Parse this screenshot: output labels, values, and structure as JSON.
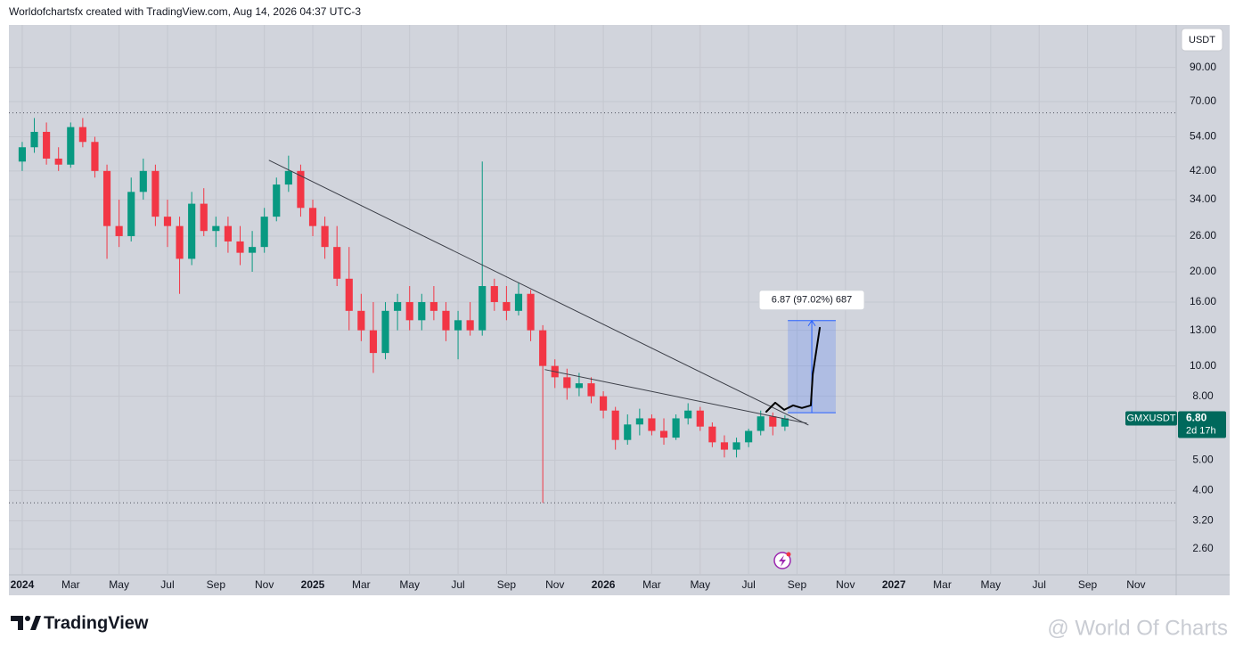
{
  "header": {
    "text": "Worldofchartsfx created with TradingView.com, Aug 14, 2026 04:37 UTC-3"
  },
  "chart_data": {
    "type": "candlestick",
    "currency": "USDT",
    "symbol": "GMXUSDT",
    "last_price": {
      "value": 6.8,
      "label": "6.80"
    },
    "countdown": "2d 17h",
    "up_color": "#089981",
    "down_color": "#f23645",
    "x": [
      0,
      0.5,
      1,
      1.5,
      2,
      2.5,
      3,
      3.5,
      4,
      4.5,
      5,
      5.5,
      6,
      6.5,
      7,
      7.5,
      8,
      8.5,
      9,
      9.5,
      10,
      10.5,
      11,
      11.5,
      12,
      12.5,
      13,
      13.5,
      14,
      14.5,
      15,
      15.5,
      16,
      16.5,
      17,
      17.5,
      18,
      18.5,
      19,
      19.5,
      20,
      20.5,
      21,
      21.5,
      22,
      22.5,
      23,
      23.5,
      24,
      24.5,
      25,
      25.5,
      26,
      26.5,
      27,
      27.5,
      28,
      28.5,
      29,
      29.5,
      30,
      30.5,
      31,
      31.5
    ],
    "open": [
      45,
      50,
      56,
      46,
      44,
      58,
      52,
      42,
      28,
      26,
      36,
      42,
      30,
      28,
      22,
      33,
      27,
      28,
      25,
      23,
      24,
      30,
      38,
      42,
      32,
      28,
      24,
      19,
      15,
      13,
      11,
      15,
      16,
      14,
      16,
      15,
      13,
      14,
      13,
      18,
      16,
      15,
      17,
      13,
      10,
      9.2,
      8.5,
      8.8,
      8,
      7.2,
      5.8,
      6.5,
      6.8,
      6.2,
      5.9,
      6.8,
      7.2,
      6.4,
      5.7,
      5.4,
      5.7,
      6.2,
      6.9,
      6.4
    ],
    "high": [
      52,
      62,
      60,
      50,
      60,
      62,
      54,
      44,
      34,
      40,
      46,
      44,
      34,
      30,
      36,
      37,
      30,
      30,
      28,
      27,
      32,
      40,
      47,
      44,
      34,
      30,
      28,
      24,
      17,
      16,
      16,
      17,
      18,
      17,
      18,
      16,
      15,
      16,
      45,
      19,
      18,
      18.5,
      17.5,
      13.5,
      10.5,
      9.8,
      9.5,
      9.2,
      8.3,
      7.4,
      7,
      7.3,
      7,
      6.8,
      7,
      7.6,
      7.4,
      6.6,
      6,
      5.9,
      6.3,
      7.2,
      7.1,
      6.95
    ],
    "low": [
      42,
      48,
      44,
      42,
      43,
      50,
      40,
      22,
      24,
      25,
      34,
      28,
      24,
      17,
      21,
      26,
      24,
      23,
      21,
      20,
      23,
      29,
      36,
      30,
      26,
      22,
      18,
      13,
      12,
      9.5,
      10.5,
      13,
      13,
      13,
      14,
      12,
      10.5,
      12.5,
      12.5,
      15,
      14,
      14.5,
      12,
      3.65,
      8.5,
      7.8,
      8,
      7.6,
      6.8,
      5.4,
      5.6,
      6,
      6,
      5.6,
      5.8,
      6.5,
      6.2,
      5.5,
      5.1,
      5.1,
      5.5,
      6,
      6,
      6.2
    ],
    "close": [
      50,
      56,
      46,
      44,
      58,
      52,
      42,
      28,
      26,
      36,
      42,
      30,
      28,
      22,
      33,
      27,
      28,
      25,
      23,
      24,
      30,
      38,
      42,
      32,
      28,
      24,
      19,
      15,
      13,
      11,
      15,
      16,
      14,
      16,
      15,
      13,
      14,
      13,
      18,
      16,
      15,
      17,
      13,
      10,
      9.2,
      8.5,
      8.8,
      8,
      7.2,
      5.8,
      6.5,
      6.8,
      6.2,
      5.9,
      6.8,
      7.2,
      6.4,
      5.7,
      5.4,
      5.7,
      6.2,
      6.9,
      6.4,
      6.8
    ],
    "xlim": [
      -0.55,
      47.66
    ],
    "xticks": [
      {
        "value": 0,
        "label": "2024"
      },
      {
        "value": 2,
        "label": "Mar"
      },
      {
        "value": 4,
        "label": "May"
      },
      {
        "value": 6,
        "label": "Jul"
      },
      {
        "value": 8,
        "label": "Sep"
      },
      {
        "value": 10,
        "label": "Nov"
      },
      {
        "value": 12,
        "label": "2025"
      },
      {
        "value": 14,
        "label": "Mar"
      },
      {
        "value": 16,
        "label": "May"
      },
      {
        "value": 18,
        "label": "Jul"
      },
      {
        "value": 20,
        "label": "Sep"
      },
      {
        "value": 22,
        "label": "Nov"
      },
      {
        "value": 24,
        "label": "2026"
      },
      {
        "value": 26,
        "label": "Mar"
      },
      {
        "value": 28,
        "label": "May"
      },
      {
        "value": 30,
        "label": "Jul"
      },
      {
        "value": 32,
        "label": "Sep"
      },
      {
        "value": 34,
        "label": "Nov"
      },
      {
        "value": 36,
        "label": "2027"
      },
      {
        "value": 38,
        "label": "Mar"
      },
      {
        "value": 40,
        "label": "May"
      },
      {
        "value": 42,
        "label": "Jul"
      },
      {
        "value": 44,
        "label": "Sep"
      },
      {
        "value": 46,
        "label": "Nov"
      }
    ],
    "ylim": [
      2.15,
      123
    ],
    "log_scale": true,
    "grid": true,
    "yticks": [
      {
        "value": 2.6,
        "label": "2.60"
      },
      {
        "value": 3.2,
        "label": "3.20"
      },
      {
        "value": 4,
        "label": "4.00"
      },
      {
        "value": 5,
        "label": "5.00"
      },
      {
        "value": 8,
        "label": "8.00"
      },
      {
        "value": 10,
        "label": "10.00"
      },
      {
        "value": 13,
        "label": "13.00"
      },
      {
        "value": 16,
        "label": "16.00"
      },
      {
        "value": 20,
        "label": "20.00"
      },
      {
        "value": 26,
        "label": "26.00"
      },
      {
        "value": 34,
        "label": "34.00"
      },
      {
        "value": 42,
        "label": "42.00"
      },
      {
        "value": 54,
        "label": "54.00"
      },
      {
        "value": 70,
        "label": "70.00"
      },
      {
        "value": 90,
        "label": "90.00"
      }
    ],
    "levels": [
      64.4,
      3.65
    ],
    "trendlines": [
      {
        "x": [
          10.2,
          32.46
        ],
        "values": [
          45.4,
          6.48
        ]
      },
      {
        "x": [
          21.6,
          32.39
        ],
        "values": [
          9.73,
          6.56
        ]
      }
    ],
    "measure": {
      "x": [
        31.62,
        33.6
      ],
      "from": 7.09,
      "to": 13.96,
      "label": "6.87 (97.02%) 687"
    },
    "projection": {
      "x": [
        30.73,
        31.1,
        31.47,
        31.84,
        32.2,
        32.57,
        32.65,
        32.79,
        32.94
      ],
      "values": [
        7.14,
        7.63,
        7.24,
        7.48,
        7.34,
        7.48,
        9.41,
        11.09,
        13.24
      ]
    }
  },
  "footer": {
    "brand": "TradingView",
    "watermark": "@ World Of Charts"
  }
}
